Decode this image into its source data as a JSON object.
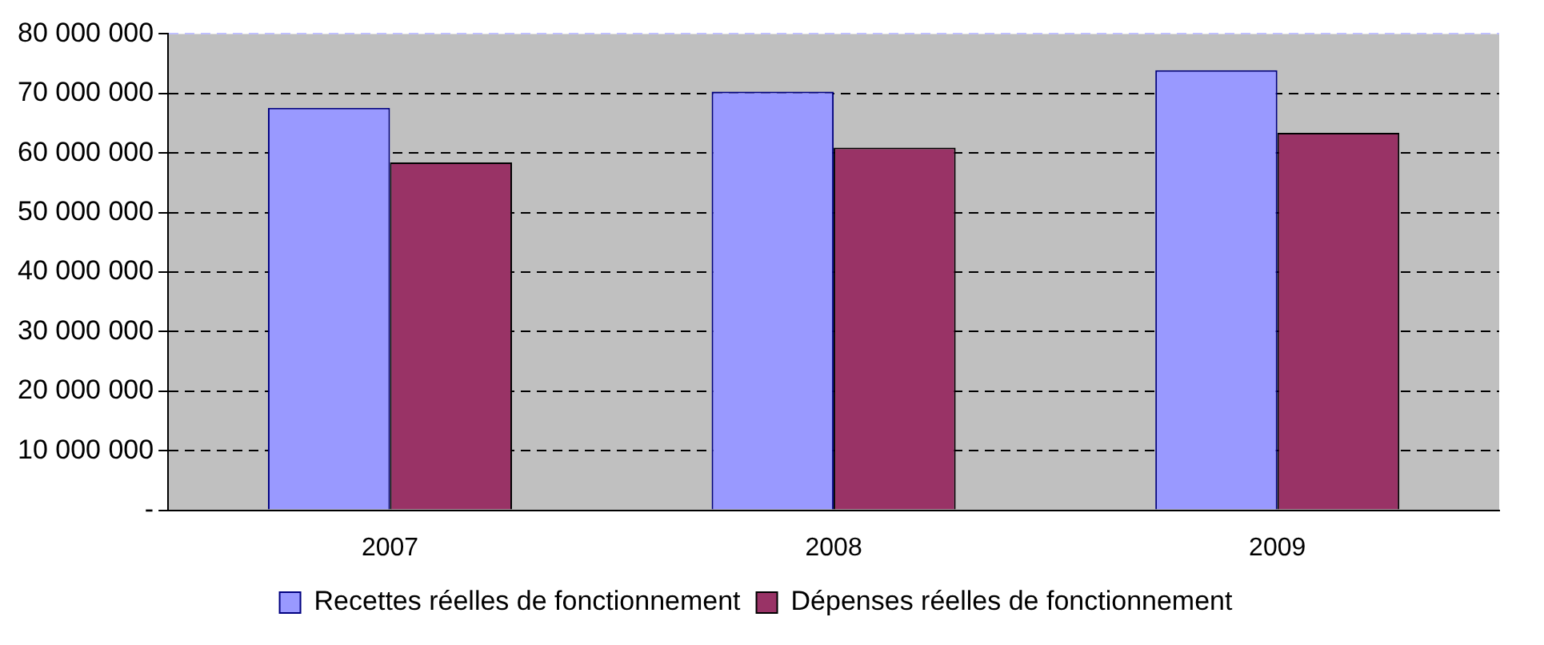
{
  "chart_data": {
    "type": "bar",
    "categories": [
      "2007",
      "2008",
      "2009"
    ],
    "series": [
      {
        "name": "Recettes réelles de fonctionnement",
        "color": "#9999ff",
        "values": [
          67600000,
          70300000,
          73900000
        ]
      },
      {
        "name": "Dépenses réelles de fonctionnement",
        "color": "#993366",
        "values": [
          58400000,
          60900000,
          63400000
        ]
      }
    ],
    "ylim": [
      0,
      80000000
    ],
    "yticks": [
      {
        "value": 0,
        "label": "-"
      },
      {
        "value": 10000000,
        "label": "10 000 000"
      },
      {
        "value": 20000000,
        "label": "20 000 000"
      },
      {
        "value": 30000000,
        "label": "30 000 000"
      },
      {
        "value": 40000000,
        "label": "40 000 000"
      },
      {
        "value": 50000000,
        "label": "50 000 000"
      },
      {
        "value": 60000000,
        "label": "60 000 000"
      },
      {
        "value": 70000000,
        "label": "70 000 000"
      },
      {
        "value": 80000000,
        "label": "80 000 000"
      }
    ],
    "grid": "y",
    "legend": "bottom"
  }
}
